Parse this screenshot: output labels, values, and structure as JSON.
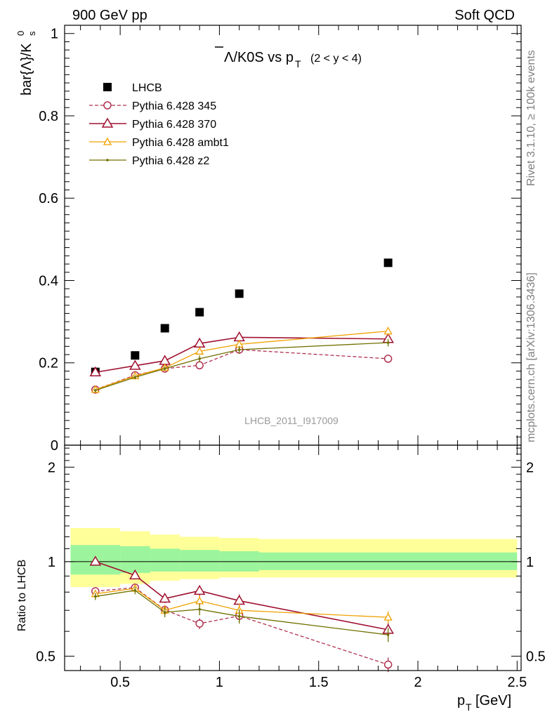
{
  "header": {
    "left": "900 GeV pp",
    "right": "Soft QCD"
  },
  "side_labels": {
    "top": "Rivet 3.1.10, ≥ 100k events",
    "bottom": "mcplots.cern.ch [arXiv:1306.3436]"
  },
  "watermark": "LHCB_2011_I917009",
  "chart_data": [
    {
      "type": "line",
      "title_main": "Λ/K0S vs p",
      "title_sub": "T",
      "title_range": "(2 < y < 4)",
      "ylabel": "bar{Λ}/K",
      "ylabel_sup": "0",
      "ylabel_sub": "s",
      "ylim": [
        0,
        1.02
      ],
      "yticks": [
        0,
        0.2,
        0.4,
        0.6,
        0.8,
        1
      ],
      "ytick_labels": [
        "0",
        "0.2",
        "0.4",
        "0.6",
        "0.8",
        "1"
      ],
      "xlim": [
        0.22,
        2.52
      ],
      "grid": false,
      "legend_position": "top-left",
      "series": [
        {
          "name": "LHCB",
          "style": "data",
          "color": "#000000",
          "x": [
            0.375,
            0.575,
            0.725,
            0.9,
            1.1,
            1.85
          ],
          "y": [
            0.178,
            0.218,
            0.284,
            0.323,
            0.368,
            0.443
          ],
          "yerr": [
            0.005,
            0.006,
            0.006,
            0.007,
            0.008,
            0.009
          ]
        },
        {
          "name": "Pythia 6.428 345",
          "style": "open-circle-dashed",
          "color": "#b03050",
          "x": [
            0.375,
            0.575,
            0.725,
            0.9,
            1.1,
            1.85
          ],
          "y": [
            0.135,
            0.17,
            0.186,
            0.194,
            0.232,
            0.21
          ],
          "yerr": [
            0.004,
            0.005,
            0.005,
            0.007,
            0.009,
            0.009
          ]
        },
        {
          "name": "Pythia 6.428 370",
          "style": "open-triangle",
          "color": "#a01030",
          "x": [
            0.375,
            0.575,
            0.725,
            0.9,
            1.1,
            1.85
          ],
          "y": [
            0.177,
            0.193,
            0.205,
            0.247,
            0.262,
            0.258
          ],
          "yerr": [
            0.004,
            0.005,
            0.006,
            0.008,
            0.01,
            0.011
          ]
        },
        {
          "name": "Pythia 6.428 ambt1",
          "style": "open-triangle-small",
          "color": "#f0a000",
          "x": [
            0.375,
            0.575,
            0.725,
            0.9,
            1.1,
            1.85
          ],
          "y": [
            0.135,
            0.168,
            0.188,
            0.228,
            0.245,
            0.277
          ],
          "yerr": [
            0.004,
            0.005,
            0.006,
            0.008,
            0.01,
            0.01
          ]
        },
        {
          "name": "Pythia 6.428 z2",
          "style": "dot",
          "color": "#707000",
          "x": [
            0.375,
            0.575,
            0.725,
            0.9,
            1.1,
            1.85
          ],
          "y": [
            0.133,
            0.165,
            0.186,
            0.21,
            0.232,
            0.249
          ],
          "yerr": [
            0.004,
            0.005,
            0.005,
            0.008,
            0.009,
            0.009
          ]
        }
      ]
    },
    {
      "type": "line",
      "ylabel": "Ratio to LHCB",
      "xlabel": "p",
      "xlabel_sub": "T",
      "xlabel_unit": "[GeV]",
      "xlim": [
        0.22,
        2.52
      ],
      "xticks": [
        0.5,
        1,
        1.5,
        2,
        2.5
      ],
      "xtick_labels": [
        "0.5",
        "1",
        "1.5",
        "2",
        "2.5"
      ],
      "ylim": [
        0.45,
        2.35
      ],
      "ytick_scale": "log",
      "yticks": [
        0.5,
        1,
        2
      ],
      "ytick_labels": [
        "0.5",
        "1",
        "2"
      ],
      "bands": {
        "x_edges": [
          0.25,
          0.5,
          0.65,
          0.8,
          1.0,
          1.2,
          2.5
        ],
        "inner": [
          [
            0.91,
            1.13
          ],
          [
            0.92,
            1.12
          ],
          [
            0.93,
            1.1
          ],
          [
            0.93,
            1.09
          ],
          [
            0.93,
            1.08
          ],
          [
            0.94,
            1.07
          ]
        ],
        "outer": [
          [
            0.83,
            1.28
          ],
          [
            0.85,
            1.25
          ],
          [
            0.87,
            1.22
          ],
          [
            0.88,
            1.2
          ],
          [
            0.89,
            1.19
          ],
          [
            0.89,
            1.18
          ]
        ],
        "inner_color": "#9cf59c",
        "outer_color": "#ffff99"
      },
      "series": [
        {
          "name": "Pythia 6.428 345",
          "style": "open-circle-dashed",
          "color": "#b03050",
          "x": [
            0.375,
            0.575,
            0.725,
            0.9,
            1.1,
            1.85
          ],
          "y": [
            0.805,
            0.827,
            0.702,
            0.635,
            0.672,
            0.47
          ],
          "yerr": [
            0.02,
            0.022,
            0.025,
            0.025,
            0.03,
            0.025
          ]
        },
        {
          "name": "Pythia 6.428 370",
          "style": "open-triangle",
          "color": "#a01030",
          "x": [
            0.375,
            0.575,
            0.725,
            0.9,
            1.1,
            1.85
          ],
          "y": [
            1.0,
            0.905,
            0.763,
            0.808,
            0.751,
            0.607
          ],
          "yerr": [
            0.02,
            0.022,
            0.025,
            0.03,
            0.035,
            0.03
          ]
        },
        {
          "name": "Pythia 6.428 ambt1",
          "style": "open-triangle-small",
          "color": "#f0a000",
          "x": [
            0.375,
            0.575,
            0.725,
            0.9,
            1.1,
            1.85
          ],
          "y": [
            0.79,
            0.822,
            0.7,
            0.75,
            0.7,
            0.665
          ],
          "yerr": [
            0.02,
            0.022,
            0.025,
            0.03,
            0.035,
            0.03
          ]
        },
        {
          "name": "Pythia 6.428 z2",
          "style": "dot",
          "color": "#707000",
          "x": [
            0.375,
            0.575,
            0.725,
            0.9,
            1.1,
            1.85
          ],
          "y": [
            0.775,
            0.81,
            0.69,
            0.705,
            0.67,
            0.585
          ],
          "yerr": [
            0.02,
            0.022,
            0.025,
            0.03,
            0.035,
            0.03
          ]
        }
      ]
    }
  ]
}
